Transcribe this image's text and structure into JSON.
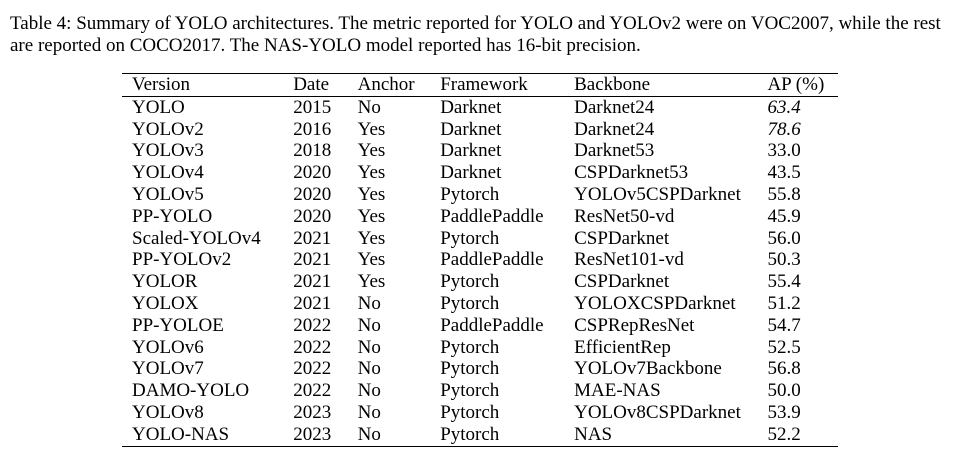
{
  "caption": "Table 4: Summary of YOLO architectures. The metric reported for YOLO and YOLOv2 were on VOC2007, while the rest are reported on COCO2017. The NAS-YOLO model reported has 16-bit precision.",
  "table": {
    "columns": [
      "Version",
      "Date",
      "Anchor",
      "Framework",
      "Backbone",
      "AP (%)"
    ],
    "rows": [
      {
        "version": "YOLO",
        "date": "2015",
        "anchor": "No",
        "framework": "Darknet",
        "backbone": "Darknet24",
        "ap": "63.4",
        "italic": true
      },
      {
        "version": "YOLOv2",
        "date": "2016",
        "anchor": "Yes",
        "framework": "Darknet",
        "backbone": "Darknet24",
        "ap": "78.6",
        "italic": true
      },
      {
        "version": "YOLOv3",
        "date": "2018",
        "anchor": "Yes",
        "framework": "Darknet",
        "backbone": "Darknet53",
        "ap": "33.0"
      },
      {
        "version": "YOLOv4",
        "date": "2020",
        "anchor": "Yes",
        "framework": "Darknet",
        "backbone": "CSPDarknet53",
        "ap": "43.5"
      },
      {
        "version": "YOLOv5",
        "date": "2020",
        "anchor": "Yes",
        "framework": "Pytorch",
        "backbone": "YOLOv5CSPDarknet",
        "ap": "55.8"
      },
      {
        "version": "PP-YOLO",
        "date": "2020",
        "anchor": "Yes",
        "framework": "PaddlePaddle",
        "backbone": "ResNet50-vd",
        "ap": "45.9"
      },
      {
        "version": "Scaled-YOLOv4",
        "date": "2021",
        "anchor": "Yes",
        "framework": "Pytorch",
        "backbone": "CSPDarknet",
        "ap": "56.0"
      },
      {
        "version": "PP-YOLOv2",
        "date": "2021",
        "anchor": "Yes",
        "framework": "PaddlePaddle",
        "backbone": "ResNet101-vd",
        "ap": "50.3",
        "highlight": true
      },
      {
        "version": "YOLOR",
        "date": "2021",
        "anchor": "Yes",
        "framework": "Pytorch",
        "backbone": "CSPDarknet",
        "ap": "55.4"
      },
      {
        "version": "YOLOX",
        "date": "2021",
        "anchor": "No",
        "framework": "Pytorch",
        "backbone": "YOLOXCSPDarknet",
        "ap": "51.2"
      },
      {
        "version": "PP-YOLOE",
        "date": "2022",
        "anchor": "No",
        "framework": "PaddlePaddle",
        "backbone": "CSPRepResNet",
        "ap": "54.7"
      },
      {
        "version": "YOLOv6",
        "date": "2022",
        "anchor": "No",
        "framework": "Pytorch",
        "backbone": "EfficientRep",
        "ap": "52.5"
      },
      {
        "version": "YOLOv7",
        "date": "2022",
        "anchor": "No",
        "framework": "Pytorch",
        "backbone": "YOLOv7Backbone",
        "ap": "56.8"
      },
      {
        "version": "DAMO-YOLO",
        "date": "2022",
        "anchor": "No",
        "framework": "Pytorch",
        "backbone": "MAE-NAS",
        "ap": "50.0"
      },
      {
        "version": "YOLOv8",
        "date": "2023",
        "anchor": "No",
        "framework": "Pytorch",
        "backbone": "YOLOv8CSPDarknet",
        "ap": "53.9"
      },
      {
        "version": "YOLO-NAS",
        "date": "2023",
        "anchor": "No",
        "framework": "Pytorch",
        "backbone": "NAS",
        "ap": "52.2"
      }
    ]
  },
  "colors": {
    "selection_highlight": "#7fb2e0"
  }
}
